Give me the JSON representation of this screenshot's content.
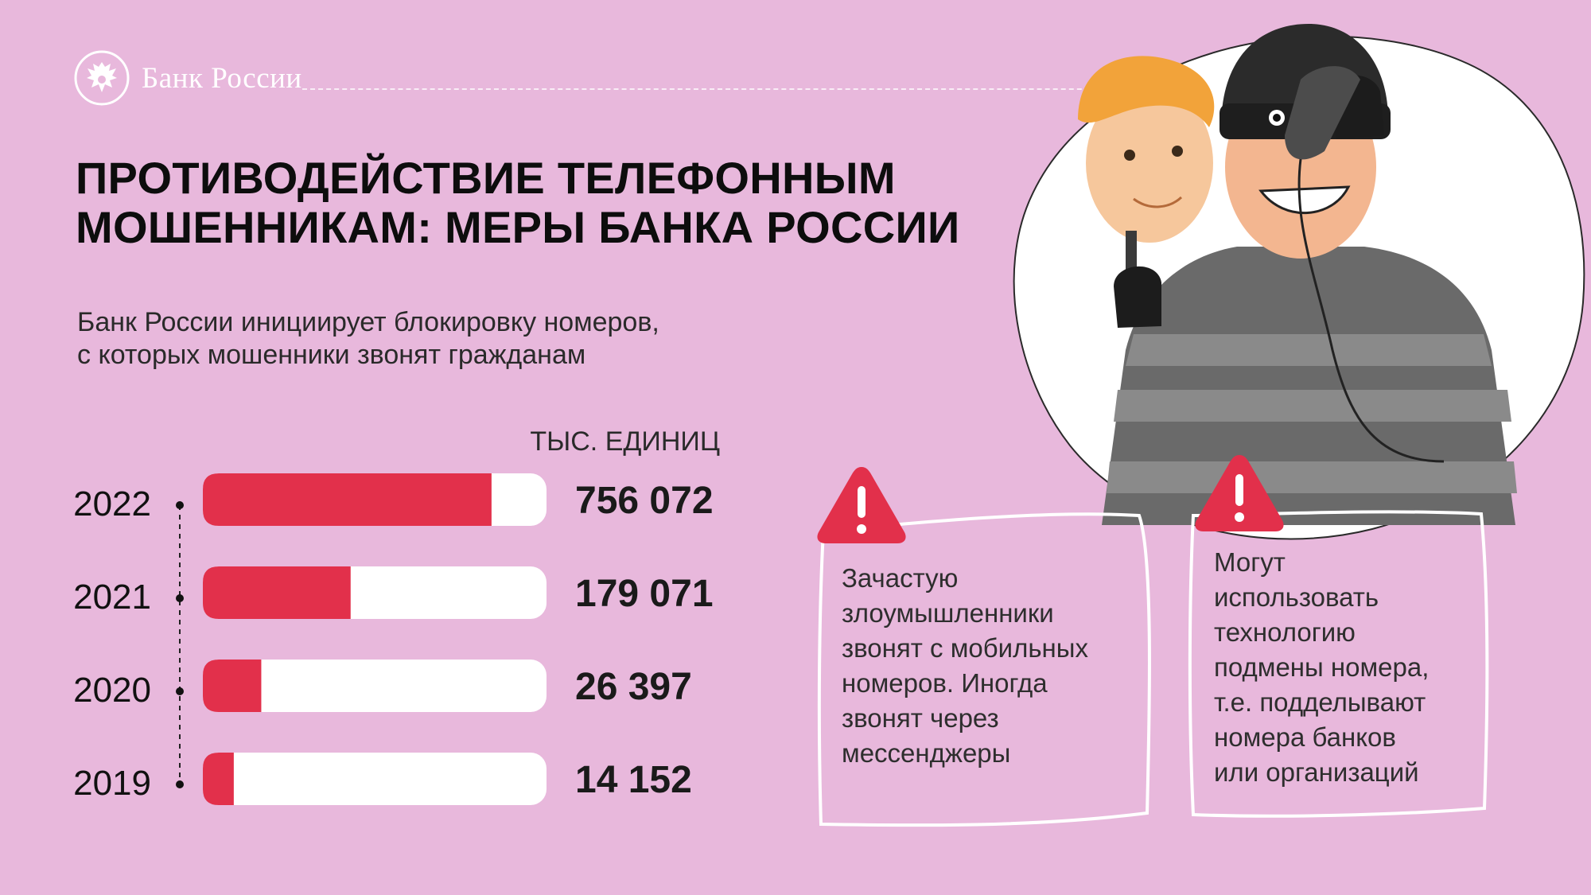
{
  "brand": {
    "name": "Банк России",
    "emblem_icon": "double-headed-eagle-emblem"
  },
  "title": {
    "line1": "ПРОТИВОДЕЙСТВИЕ ТЕЛЕФОННЫМ",
    "line2": "МОШЕННИКАМ: МЕРЫ БАНКА РОССИИ"
  },
  "subtitle": {
    "line1": "Банк России инициирует блокировку номеров,",
    "line2": "с которых мошенники звонят гражданам"
  },
  "chart_data": {
    "type": "bar",
    "orientation": "horizontal",
    "unit_label": "ТЫС. ЕДИНИЦ",
    "categories": [
      "2022",
      "2021",
      "2020",
      "2019"
    ],
    "values": [
      756072,
      179071,
      26397,
      14152
    ],
    "value_labels": [
      "756 072",
      "179 071",
      "26 397",
      "14 152"
    ],
    "fill_fractions": [
      0.84,
      0.43,
      0.17,
      0.09
    ],
    "colors": {
      "fill": "#e2304b",
      "track": "#ffffff"
    }
  },
  "cards": [
    {
      "icon": "warning-triangle-icon",
      "lines": [
        "Зачастую",
        "злоумышленники",
        "звонят с мобильных",
        "номеров. Иногда",
        "звонят через",
        "мессенджеры"
      ]
    },
    {
      "icon": "warning-triangle-icon",
      "lines": [
        "Могут",
        "использовать",
        "технологию",
        "подмены номера,",
        "т.е. подделывают",
        "номера банков",
        "или организаций"
      ]
    }
  ],
  "illustration": {
    "icon": "fraudster-with-mask-and-phone-illustration"
  },
  "colors": {
    "background": "#e8b8dc",
    "accent": "#e2304b",
    "text": "#0d0d0d"
  }
}
